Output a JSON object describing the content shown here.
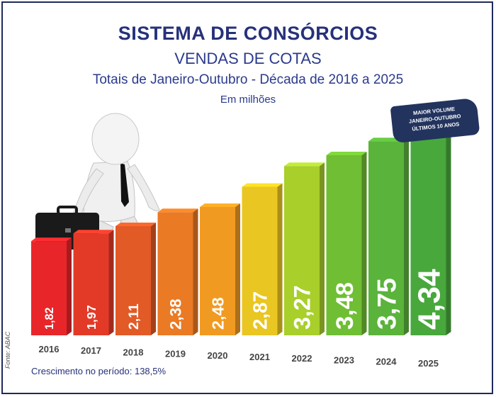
{
  "header": {
    "title": "SISTEMA DE CONSÓRCIOS",
    "subtitle": "VENDAS DE COTAS",
    "subtitle2": "Totais de Janeiro-Outubro - Década de 2016 a 2025",
    "unit": "Em milhões"
  },
  "badge": {
    "line1": "MAIOR VOLUME",
    "line2": "JANEIRO-OUTUBRO",
    "line3": "ÚLTIMOS 10 ANOS"
  },
  "footer": {
    "source": "Fonte: ABAC",
    "growth": "Crescimento no período: 138,5%"
  },
  "chart_data": {
    "type": "bar",
    "title": "SISTEMA DE CONSÓRCIOS",
    "categories": [
      "2016",
      "2017",
      "2018",
      "2019",
      "2020",
      "2021",
      "2022",
      "2023",
      "2024",
      "2025"
    ],
    "values": [
      1.82,
      1.97,
      2.11,
      2.38,
      2.48,
      2.87,
      3.27,
      3.48,
      3.75,
      4.34
    ],
    "labels": [
      "1,82",
      "1,97",
      "2,11",
      "2,38",
      "2,48",
      "2,87",
      "3,27",
      "3,48",
      "3,75",
      "4,34"
    ],
    "colors": [
      "#e8262a",
      "#e33a28",
      "#e25a26",
      "#ea7a24",
      "#f09a22",
      "#e9c621",
      "#a9cf2b",
      "#6fbe34",
      "#5ab33a",
      "#48a83c"
    ],
    "xlabel": "",
    "ylabel": "",
    "grid": false,
    "legend": "none"
  }
}
